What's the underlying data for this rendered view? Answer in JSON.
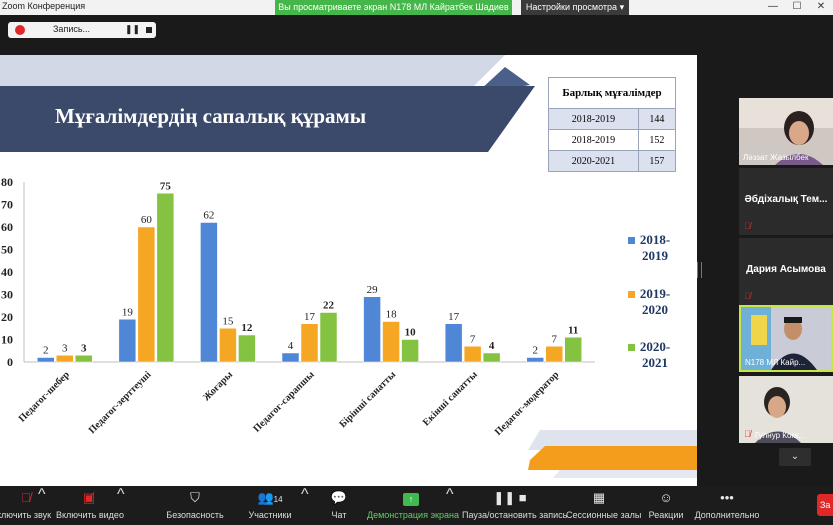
{
  "titlebar": {
    "app_title": "Zoom Конференция",
    "share_banner": "Вы просматриваете экран N178 МЛ Кайратбек Шадиев",
    "view_options": "Настройки просмотра",
    "view_options_caret": "▾",
    "minimize": "—",
    "maximize": "☐",
    "close": "✕"
  },
  "recording": {
    "label": "Запись...",
    "pause": "❚❚"
  },
  "slide": {
    "title": "Мұғалімдердің сапалық құрамы",
    "table": {
      "header": "Барлық мұғалімдер",
      "rows": [
        {
          "year": "2018-2019",
          "count": "144"
        },
        {
          "year": "2018-2019",
          "count": "152"
        },
        {
          "year": "2020-2021",
          "count": "157"
        }
      ]
    }
  },
  "chart_data": {
    "type": "bar",
    "categories": [
      "Педагог-шебер",
      "Педагог-зерттеуші",
      "Жоғары",
      "Педагог-сарапшы",
      "Бірінші санатты",
      "Екінші санатты",
      "Педагог-модератор"
    ],
    "series": [
      {
        "name": "2018-2019",
        "color": "#4f87d6",
        "values": [
          2,
          19,
          62,
          4,
          29,
          17,
          2
        ]
      },
      {
        "name": "2019-2020",
        "color": "#f5a623",
        "values": [
          3,
          60,
          15,
          17,
          18,
          7,
          7
        ]
      },
      {
        "name": "2020-2021",
        "color": "#84c341",
        "values": [
          3,
          75,
          12,
          22,
          10,
          4,
          11
        ]
      }
    ],
    "yticks": [
      "0",
      "10",
      "20",
      "30",
      "40",
      "50",
      "60",
      "70",
      "80"
    ],
    "ylim": [
      0,
      80
    ],
    "grid": false,
    "legend_position": "right",
    "legend_lines": [
      [
        "2018-",
        "2019"
      ],
      [
        "2019-",
        "2020"
      ],
      [
        "2020-",
        "2021"
      ]
    ]
  },
  "participants": [
    {
      "name": "Ләззат Жазылбек",
      "video": true,
      "muted": false
    },
    {
      "name": "Әбдіхалық Тем...",
      "video": false,
      "muted": true
    },
    {
      "name": "Дария Асымова",
      "video": false,
      "muted": true
    },
    {
      "name": "N178 МЛ Кайр...",
      "video": true,
      "muted": false,
      "active": true
    },
    {
      "name": "Гулнур Кокк...",
      "video": true,
      "muted": true
    }
  ],
  "toolbar": {
    "audio": "Включить звук",
    "video": "Включить видео",
    "security": "Безопасность",
    "participants": "Участники",
    "participants_count": "14",
    "chat": "Чат",
    "share": "Демонстрация экрана",
    "pause_record": "Пауза/остановить запись",
    "breakout": "Сессионные залы",
    "reactions": "Реакции",
    "more": "Дополнительно",
    "end": "За"
  },
  "colors": {
    "banner_green": "#45b649",
    "title_band": "#3b4a6b",
    "active_border": "#c8e640",
    "record_red": "#e02828"
  }
}
